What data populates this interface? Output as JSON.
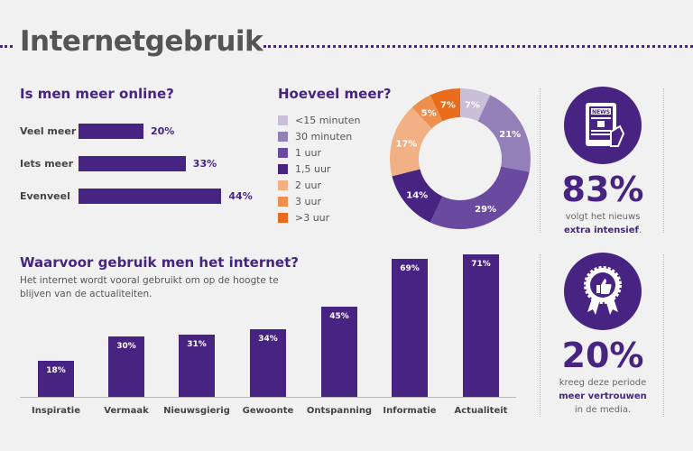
{
  "title": "Internetgebruik",
  "colors": {
    "purple": "#472382",
    "background": "#f1f1f1"
  },
  "chart_data": [
    {
      "type": "bar",
      "orientation": "horizontal",
      "title": "Is men meer online?",
      "categories": [
        "Veel meer",
        "Iets meer",
        "Evenveel"
      ],
      "values": [
        20,
        33,
        44
      ],
      "labels": [
        "20%",
        "33%",
        "44%"
      ]
    },
    {
      "type": "pie",
      "donut": true,
      "title": "Hoeveel meer?",
      "legend_position": "left",
      "categories": [
        "<15 minuten",
        "30 minuten",
        "1 uur",
        "1,5 uur",
        "2 uur",
        "3 uur",
        ">3 uur"
      ],
      "values": [
        7,
        21,
        29,
        14,
        17,
        5,
        7
      ],
      "labels": [
        "7%",
        "21%",
        "29%",
        "14%",
        "17%",
        "5%",
        "7%"
      ],
      "colors": [
        "#c9bfd9",
        "#9480b8",
        "#6a4a9e",
        "#472382",
        "#f2b085",
        "#ef8f4e",
        "#e86c1c"
      ]
    },
    {
      "type": "bar",
      "title": "Waarvoor gebruik men het internet?",
      "subtitle": "Het internet wordt vooral gebruikt om op de hoogte te blijven van de actualiteiten.",
      "categories": [
        "Inspiratie",
        "Vermaak",
        "Nieuwsgierig",
        "Gewoonte",
        "Ontspanning",
        "Informatie",
        "Actualiteit"
      ],
      "values": [
        18,
        30,
        31,
        34,
        45,
        69,
        71
      ],
      "labels": [
        "18%",
        "30%",
        "31%",
        "34%",
        "45%",
        "69%",
        "71%"
      ]
    }
  ],
  "stats": [
    {
      "icon": "news-tablet-icon",
      "icon_text": "NEWS",
      "value": "83%",
      "line1": "volgt het nieuws",
      "bold": "extra intensief",
      "line3": "."
    },
    {
      "icon": "award-thumbs-up-icon",
      "value": "20%",
      "line1": "kreeg deze periode",
      "bold": "meer vertrouwen",
      "line3": "in de media."
    }
  ]
}
